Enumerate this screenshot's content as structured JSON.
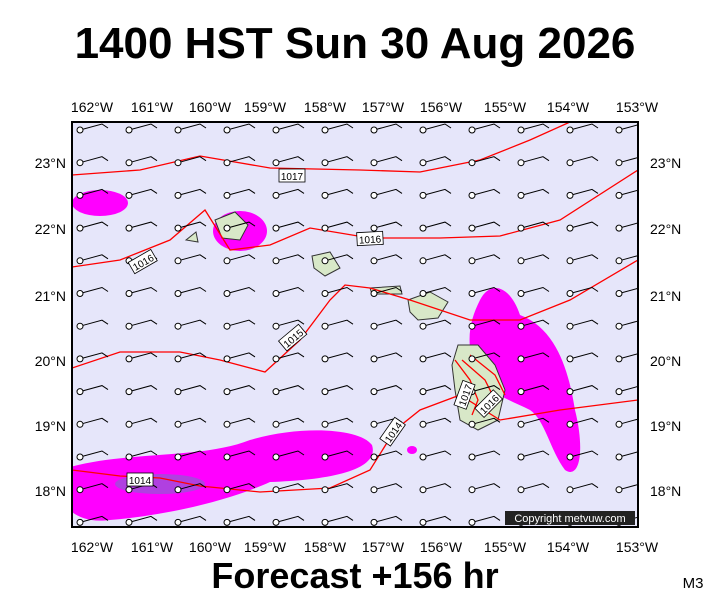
{
  "title": "1400 HST Sun 30 Aug 2026",
  "footer": "Forecast +156 hr",
  "corner_label": "M3",
  "copyright": "Copyright metvuw.com",
  "longitude_labels": [
    "162°W",
    "161°W",
    "160°W",
    "159°W",
    "158°W",
    "157°W",
    "156°W",
    "155°W",
    "154°W",
    "153°W"
  ],
  "latitude_labels": [
    "23°N",
    "22°N",
    "21°N",
    "20°N",
    "19°N",
    "18°N"
  ],
  "isobar_labels": [
    "1017",
    "1016",
    "1016",
    "1015",
    "1014",
    "1014",
    "1017",
    "1016"
  ]
}
